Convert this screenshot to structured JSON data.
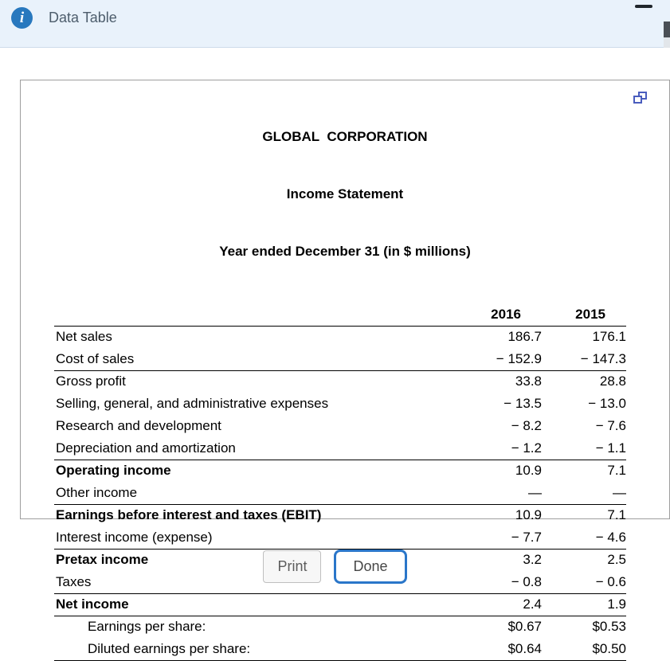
{
  "header": {
    "title": "Data Table",
    "info_glyph": "i"
  },
  "panel": {
    "title1": "GLOBAL  CORPORATION",
    "title2": "Income Statement",
    "title3": "Year ended December 31 (in $ millions)",
    "col_2016": "2016",
    "col_2015": "2015",
    "rows": [
      {
        "label": "Net sales",
        "y2016": "186.7",
        "y2015": "176.1"
      },
      {
        "label": "Cost of sales",
        "y2016": "− 152.9",
        "y2015": "− 147.3"
      },
      {
        "label": "Gross profit",
        "y2016": "33.8",
        "y2015": "28.8"
      },
      {
        "label": "Selling, general, and administrative expenses",
        "y2016": "− 13.5",
        "y2015": "− 13.0"
      },
      {
        "label": "Research and development",
        "y2016": "− 8.2",
        "y2015": "− 7.6"
      },
      {
        "label": "Depreciation and amortization",
        "y2016": "− 1.2",
        "y2015": "− 1.1"
      },
      {
        "label": "Operating income",
        "y2016": "10.9",
        "y2015": "7.1"
      },
      {
        "label": "Other income",
        "y2016": "—",
        "y2015": "—"
      },
      {
        "label": "Earnings before interest and taxes (EBIT)",
        "y2016": "10.9",
        "y2015": "7.1"
      },
      {
        "label": "Interest income (expense)",
        "y2016": "− 7.7",
        "y2015": "− 4.6"
      },
      {
        "label": "Pretax income",
        "y2016": "3.2",
        "y2015": "2.5"
      },
      {
        "label": "Taxes",
        "y2016": "− 0.8",
        "y2015": "− 0.6"
      },
      {
        "label": "Net income",
        "y2016": "2.4",
        "y2015": "1.9"
      },
      {
        "label": "Earnings per share:",
        "y2016": "$0.67",
        "y2015": "$0.53"
      },
      {
        "label": "Diluted earnings per share:",
        "y2016": "$0.64",
        "y2015": "$0.50"
      }
    ]
  },
  "buttons": {
    "print": "Print",
    "done": "Done"
  },
  "colors": {
    "accent_blue": "#2a76c9",
    "header_bg": "#e9f2fb",
    "info_icon_blue": "#2878be",
    "popout_purple": "#4a5dbe"
  }
}
